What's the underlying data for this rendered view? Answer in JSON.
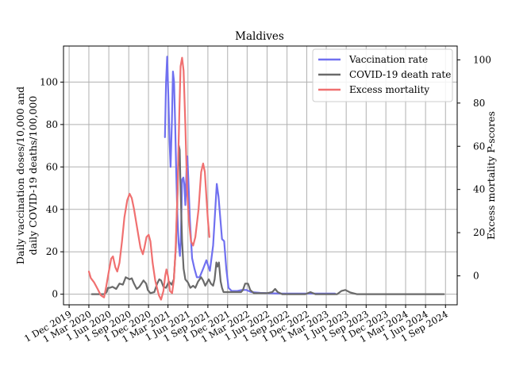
{
  "chart_data": {
    "type": "line",
    "title": "Maldives",
    "ylabel_left": [
      "Daily vaccination doses/10,000 and",
      "daily COVID-19 deaths/100,000"
    ],
    "ylabel_right": "Excess mortality P-scores",
    "xlim": [
      "2019-11-05",
      "2024-10-25"
    ],
    "ylim_left": [
      -5,
      117
    ],
    "ylim_right": [
      -13.4,
      106.4
    ],
    "grid": true,
    "legend_position": "top-right",
    "x_ticks": [
      {
        "date": "2019-12-01",
        "label": "1 Dec 2019"
      },
      {
        "date": "2020-03-01",
        "label": "1 Mar 2020"
      },
      {
        "date": "2020-06-01",
        "label": "1 Jun 2020"
      },
      {
        "date": "2020-09-01",
        "label": "1 Sep 2020"
      },
      {
        "date": "2020-12-01",
        "label": "1 Dec 2020"
      },
      {
        "date": "2021-03-01",
        "label": "1 Mar 2021"
      },
      {
        "date": "2021-06-01",
        "label": "1 Jun 2021"
      },
      {
        "date": "2021-09-01",
        "label": "1 Sep 2021"
      },
      {
        "date": "2021-12-01",
        "label": "1 Dec 2021"
      },
      {
        "date": "2022-03-01",
        "label": "1 Mar 2022"
      },
      {
        "date": "2022-06-01",
        "label": "1 Jun 2022"
      },
      {
        "date": "2022-09-01",
        "label": "1 Sep 2022"
      },
      {
        "date": "2022-12-01",
        "label": "1 Dec 2022"
      },
      {
        "date": "2023-03-01",
        "label": "1 Mar 2023"
      },
      {
        "date": "2023-06-01",
        "label": "1 Jun 2023"
      },
      {
        "date": "2023-09-01",
        "label": "1 Sep 2023"
      },
      {
        "date": "2023-12-01",
        "label": "1 Dec 2023"
      },
      {
        "date": "2024-03-01",
        "label": "1 Mar 2024"
      },
      {
        "date": "2024-06-01",
        "label": "1 Jun 2024"
      },
      {
        "date": "2024-09-01",
        "label": "1 Sep 2024"
      }
    ],
    "y_ticks_left": [
      0,
      20,
      40,
      60,
      80,
      100
    ],
    "y_ticks_right": [
      0,
      20,
      40,
      60,
      80,
      100
    ],
    "series": [
      {
        "name": "Vaccination rate",
        "axis": "left",
        "color": "#7070f0",
        "points": [
          [
            "2021-02-15",
            74
          ],
          [
            "2021-02-20",
            100
          ],
          [
            "2021-02-25",
            112
          ],
          [
            "2021-03-03",
            92
          ],
          [
            "2021-03-08",
            72
          ],
          [
            "2021-03-13",
            60
          ],
          [
            "2021-03-19",
            82
          ],
          [
            "2021-03-24",
            105
          ],
          [
            "2021-03-29",
            100
          ],
          [
            "2021-04-03",
            80
          ],
          [
            "2021-04-08",
            58
          ],
          [
            "2021-04-13",
            38
          ],
          [
            "2021-04-19",
            24
          ],
          [
            "2021-04-25",
            18
          ],
          [
            "2021-04-30",
            28
          ],
          [
            "2021-05-05",
            54
          ],
          [
            "2021-05-11",
            55
          ],
          [
            "2021-05-15",
            52
          ],
          [
            "2021-05-20",
            42
          ],
          [
            "2021-05-25",
            58
          ],
          [
            "2021-05-29",
            65
          ],
          [
            "2021-06-03",
            54
          ],
          [
            "2021-06-10",
            35
          ],
          [
            "2021-06-20",
            17
          ],
          [
            "2021-07-01",
            12
          ],
          [
            "2021-07-12",
            8
          ],
          [
            "2021-07-25",
            8
          ],
          [
            "2021-08-10",
            12
          ],
          [
            "2021-08-25",
            16
          ],
          [
            "2021-09-10",
            11
          ],
          [
            "2021-09-25",
            23
          ],
          [
            "2021-10-05",
            40
          ],
          [
            "2021-10-12",
            52
          ],
          [
            "2021-10-20",
            46
          ],
          [
            "2021-10-28",
            36
          ],
          [
            "2021-11-05",
            26
          ],
          [
            "2021-11-15",
            25
          ],
          [
            "2021-11-25",
            12
          ],
          [
            "2021-12-05",
            3
          ],
          [
            "2021-12-20",
            1.5
          ],
          [
            "2022-01-15",
            1.5
          ],
          [
            "2022-02-05",
            2
          ],
          [
            "2022-02-25",
            2
          ],
          [
            "2022-03-20",
            1
          ],
          [
            "2022-05-01",
            0.6
          ],
          [
            "2022-08-01",
            0.3
          ],
          [
            "2022-12-01",
            0.3
          ],
          [
            "2023-02-01",
            0.3
          ],
          [
            "2023-04-10",
            0.3
          ]
        ]
      },
      {
        "name": "COVID-19 death rate",
        "axis": "left",
        "color": "#6a6a6a",
        "points": [
          [
            "2020-03-15",
            0
          ],
          [
            "2020-05-10",
            0
          ],
          [
            "2020-05-22",
            1
          ],
          [
            "2020-05-28",
            3
          ],
          [
            "2020-06-05",
            3
          ],
          [
            "2020-06-18",
            3.5
          ],
          [
            "2020-07-05",
            2.5
          ],
          [
            "2020-07-20",
            5
          ],
          [
            "2020-08-05",
            4.5
          ],
          [
            "2020-08-18",
            8
          ],
          [
            "2020-09-05",
            7
          ],
          [
            "2020-09-15",
            7.5
          ],
          [
            "2020-09-25",
            5
          ],
          [
            "2020-10-08",
            2.5
          ],
          [
            "2020-10-20",
            3.5
          ],
          [
            "2020-11-08",
            6.5
          ],
          [
            "2020-11-20",
            5
          ],
          [
            "2020-11-28",
            2
          ],
          [
            "2020-12-10",
            0.5
          ],
          [
            "2020-12-28",
            1
          ],
          [
            "2021-01-10",
            5
          ],
          [
            "2021-01-20",
            7
          ],
          [
            "2021-01-28",
            6.5
          ],
          [
            "2021-02-08",
            3.5
          ],
          [
            "2021-02-20",
            3
          ],
          [
            "2021-03-05",
            6
          ],
          [
            "2021-03-18",
            4.5
          ],
          [
            "2021-03-28",
            7
          ],
          [
            "2021-04-06",
            22
          ],
          [
            "2021-04-14",
            48
          ],
          [
            "2021-04-20",
            70
          ],
          [
            "2021-04-24",
            68
          ],
          [
            "2021-04-28",
            50
          ],
          [
            "2021-05-05",
            25
          ],
          [
            "2021-05-12",
            12
          ],
          [
            "2021-05-20",
            7
          ],
          [
            "2021-06-01",
            5.5
          ],
          [
            "2021-06-12",
            3
          ],
          [
            "2021-06-25",
            4
          ],
          [
            "2021-07-05",
            3
          ],
          [
            "2021-07-18",
            6
          ],
          [
            "2021-08-01",
            8
          ],
          [
            "2021-08-10",
            6.5
          ],
          [
            "2021-08-20",
            4
          ],
          [
            "2021-09-05",
            7
          ],
          [
            "2021-09-15",
            5
          ],
          [
            "2021-09-25",
            4
          ],
          [
            "2021-10-02",
            7
          ],
          [
            "2021-10-10",
            15
          ],
          [
            "2021-10-15",
            13
          ],
          [
            "2021-10-22",
            15
          ],
          [
            "2021-10-30",
            6
          ],
          [
            "2021-11-05",
            3
          ],
          [
            "2021-11-12",
            1
          ],
          [
            "2021-12-15",
            1
          ],
          [
            "2022-02-01",
            1
          ],
          [
            "2022-02-10",
            2
          ],
          [
            "2022-02-20",
            5
          ],
          [
            "2022-03-05",
            5
          ],
          [
            "2022-03-15",
            2
          ],
          [
            "2022-04-01",
            0.5
          ],
          [
            "2022-06-01",
            0.5
          ],
          [
            "2022-06-25",
            1
          ],
          [
            "2022-07-08",
            2.5
          ],
          [
            "2022-07-20",
            1
          ],
          [
            "2022-08-10",
            0
          ],
          [
            "2022-10-01",
            0
          ],
          [
            "2022-11-25",
            0
          ],
          [
            "2022-12-18",
            1
          ],
          [
            "2023-01-10",
            0
          ],
          [
            "2023-04-20",
            0
          ],
          [
            "2023-05-10",
            1.5
          ],
          [
            "2023-05-28",
            2
          ],
          [
            "2023-06-20",
            0.8
          ],
          [
            "2023-07-20",
            0
          ],
          [
            "2024-08-25",
            0
          ]
        ]
      },
      {
        "name": "Excess mortality",
        "axis": "right",
        "color": "#f07070",
        "points": [
          [
            "2020-03-01",
            2
          ],
          [
            "2020-03-10",
            -1
          ],
          [
            "2020-03-25",
            -3
          ],
          [
            "2020-04-10",
            -6
          ],
          [
            "2020-04-25",
            -9
          ],
          [
            "2020-05-10",
            -10
          ],
          [
            "2020-05-20",
            -5
          ],
          [
            "2020-06-01",
            2
          ],
          [
            "2020-06-12",
            8
          ],
          [
            "2020-06-20",
            9
          ],
          [
            "2020-07-01",
            4
          ],
          [
            "2020-07-10",
            2
          ],
          [
            "2020-07-20",
            6
          ],
          [
            "2020-08-01",
            16
          ],
          [
            "2020-08-12",
            27
          ],
          [
            "2020-08-25",
            35
          ],
          [
            "2020-09-05",
            38
          ],
          [
            "2020-09-15",
            36
          ],
          [
            "2020-09-25",
            31
          ],
          [
            "2020-10-05",
            25
          ],
          [
            "2020-10-15",
            19
          ],
          [
            "2020-10-25",
            13
          ],
          [
            "2020-11-05",
            10
          ],
          [
            "2020-11-12",
            13
          ],
          [
            "2020-11-22",
            18
          ],
          [
            "2020-12-02",
            19
          ],
          [
            "2020-12-10",
            16
          ],
          [
            "2020-12-20",
            6
          ],
          [
            "2021-01-01",
            -2
          ],
          [
            "2021-01-08",
            -5
          ],
          [
            "2021-01-18",
            -9
          ],
          [
            "2021-01-28",
            -11
          ],
          [
            "2021-02-08",
            -7
          ],
          [
            "2021-02-16",
            0
          ],
          [
            "2021-02-22",
            3
          ],
          [
            "2021-03-01",
            0
          ],
          [
            "2021-03-10",
            -7
          ],
          [
            "2021-03-20",
            -8
          ],
          [
            "2021-03-28",
            -2
          ],
          [
            "2021-04-05",
            12
          ],
          [
            "2021-04-14",
            40
          ],
          [
            "2021-04-22",
            75
          ],
          [
            "2021-04-28",
            97
          ],
          [
            "2021-05-05",
            101
          ],
          [
            "2021-05-12",
            95
          ],
          [
            "2021-05-20",
            70
          ],
          [
            "2021-05-28",
            40
          ],
          [
            "2021-06-05",
            26
          ],
          [
            "2021-06-15",
            16
          ],
          [
            "2021-06-25",
            14
          ],
          [
            "2021-07-05",
            18
          ],
          [
            "2021-07-20",
            31
          ],
          [
            "2021-08-01",
            48
          ],
          [
            "2021-08-10",
            52
          ],
          [
            "2021-08-18",
            48
          ],
          [
            "2021-08-26",
            35
          ],
          [
            "2021-09-01",
            26
          ],
          [
            "2021-09-08",
            18
          ]
        ]
      }
    ]
  }
}
